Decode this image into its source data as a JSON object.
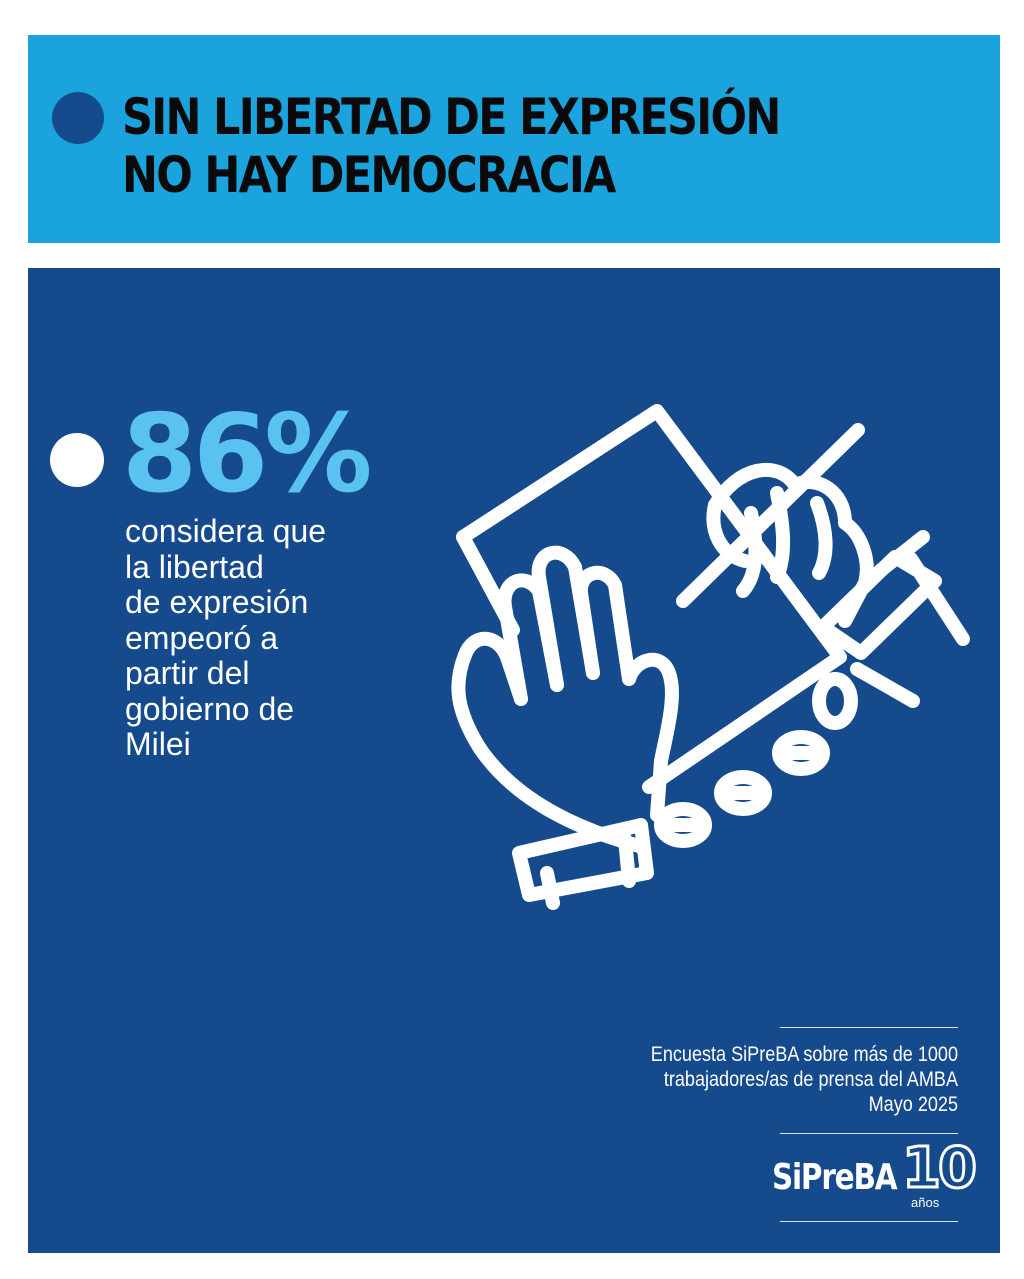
{
  "header": {
    "title_line1": "SIN LIBERTAD DE EXPRESIÓN",
    "title_line2": "NO HAY DEMOCRACIA"
  },
  "stat": {
    "value": "86%",
    "description": "considera que\nla libertad\nde expresión\nempeoró a\npartir del\ngobierno de\nMilei"
  },
  "illustration": {
    "icon": "chained-hands-holding-paper-icon"
  },
  "source": {
    "line1": "Encuesta SiPreBA sobre más de 1000",
    "line2": "trabajadores/as de prensa del AMBA",
    "line3": "Mayo 2025"
  },
  "logo": {
    "name": "SiPreBA",
    "number": "10",
    "subtitle": "años"
  },
  "colors": {
    "header_band": "#1aa3dd",
    "panel": "#154a8c",
    "stat_accent": "#5ac2f0",
    "text_dark": "#0a0a0a",
    "text_light": "#ffffff"
  }
}
